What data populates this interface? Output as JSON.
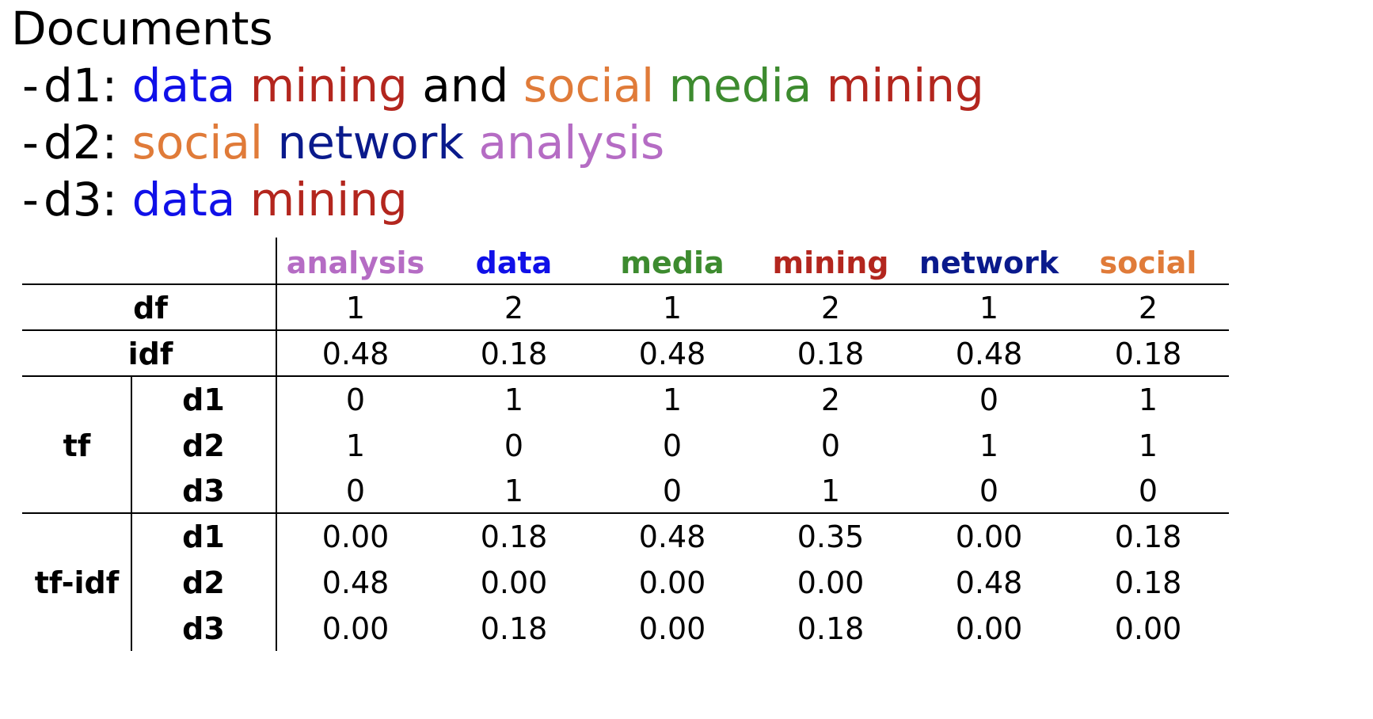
{
  "documents": {
    "title": "Documents",
    "lines": [
      {
        "dash": "-",
        "id": "d1",
        "sep": ":",
        "words": [
          {
            "text": "data",
            "color": "#1010e8"
          },
          {
            "text": "mining",
            "color": "#b3261e"
          },
          {
            "text": "and",
            "color": "#000000"
          },
          {
            "text": "social",
            "color": "#e07b39"
          },
          {
            "text": "media",
            "color": "#3d8b2f"
          },
          {
            "text": "mining",
            "color": "#b3261e"
          }
        ]
      },
      {
        "dash": "-",
        "id": "d2",
        "sep": ":",
        "words": [
          {
            "text": "social",
            "color": "#e07b39"
          },
          {
            "text": "network",
            "color": "#0a1a8c"
          },
          {
            "text": "analysis",
            "color": "#b56cc4"
          }
        ]
      },
      {
        "dash": "-",
        "id": "d3",
        "sep": ":",
        "words": [
          {
            "text": "data",
            "color": "#1010e8"
          },
          {
            "text": "mining",
            "color": "#b3261e"
          }
        ]
      }
    ]
  },
  "table": {
    "columns": [
      {
        "label": "analysis",
        "color": "#b56cc4"
      },
      {
        "label": "data",
        "color": "#1010e8"
      },
      {
        "label": "media",
        "color": "#3d8b2f"
      },
      {
        "label": "mining",
        "color": "#b3261e"
      },
      {
        "label": "network",
        "color": "#0a1a8c"
      },
      {
        "label": "social",
        "color": "#e07b39"
      }
    ],
    "df": {
      "label": "df",
      "values": [
        "1",
        "2",
        "1",
        "2",
        "1",
        "2"
      ]
    },
    "idf": {
      "label": "idf",
      "values": [
        "0.48",
        "0.18",
        "0.48",
        "0.18",
        "0.48",
        "0.18"
      ]
    },
    "tf": {
      "label": "tf",
      "rows": [
        {
          "doc": "d1",
          "values": [
            "0",
            "1",
            "1",
            "2",
            "0",
            "1"
          ]
        },
        {
          "doc": "d2",
          "values": [
            "1",
            "0",
            "0",
            "0",
            "1",
            "1"
          ]
        },
        {
          "doc": "d3",
          "values": [
            "0",
            "1",
            "0",
            "1",
            "0",
            "0"
          ]
        }
      ]
    },
    "tfidf": {
      "label": "tf-idf",
      "rows": [
        {
          "doc": "d1",
          "values": [
            "0.00",
            "0.18",
            "0.48",
            "0.35",
            "0.00",
            "0.18"
          ]
        },
        {
          "doc": "d2",
          "values": [
            "0.48",
            "0.00",
            "0.00",
            "0.00",
            "0.48",
            "0.18"
          ]
        },
        {
          "doc": "d3",
          "values": [
            "0.00",
            "0.18",
            "0.00",
            "0.18",
            "0.00",
            "0.00"
          ]
        }
      ]
    }
  }
}
